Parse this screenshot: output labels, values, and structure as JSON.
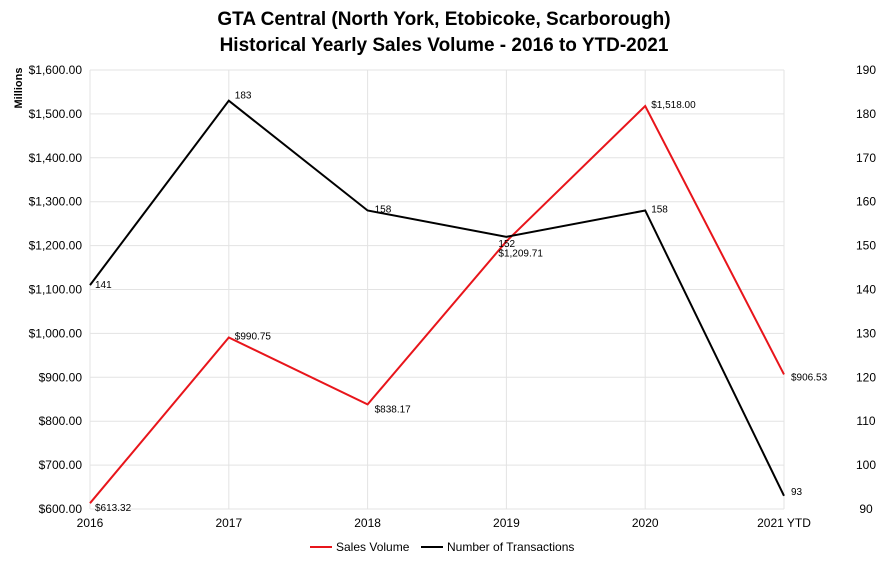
{
  "chart_data": {
    "type": "line",
    "title": "GTA Central (North York, Etobicoke, Scarborough)",
    "subtitle": "Historical Yearly Sales Volume - 2016 to YTD-2021",
    "ylabel": "Millions",
    "categories": [
      "2016",
      "2017",
      "2018",
      "2019",
      "2020",
      "2021 YTD"
    ],
    "y_left": {
      "range": [
        600,
        1600
      ],
      "ticks": [
        "$600.00",
        "$700.00",
        "$800.00",
        "$900.00",
        "$1,000.00",
        "$1,100.00",
        "$1,200.00",
        "$1,300.00",
        "$1,400.00",
        "$1,500.00",
        "$1,600.00"
      ]
    },
    "y_right": {
      "range": [
        90,
        190
      ],
      "ticks": [
        "90",
        "100",
        "110",
        "120",
        "130",
        "140",
        "150",
        "160",
        "170",
        "180",
        "190"
      ]
    },
    "grid": true,
    "legend_position": "bottom",
    "series": [
      {
        "name": "Sales Volume",
        "axis": "left",
        "color": "#e8151b",
        "values": [
          613.32,
          990.75,
          838.17,
          1209.71,
          1518.0,
          906.53
        ],
        "labels": [
          "$613.32",
          "$990.75",
          "$838.17",
          "$1,209.71",
          "$1,518.00",
          "$906.53"
        ]
      },
      {
        "name": "Number of Transactions",
        "axis": "right",
        "color": "#000000",
        "values": [
          141,
          183,
          158,
          152,
          158,
          93
        ],
        "labels": [
          "141",
          "183",
          "158",
          "152",
          "158",
          "93"
        ]
      }
    ]
  }
}
